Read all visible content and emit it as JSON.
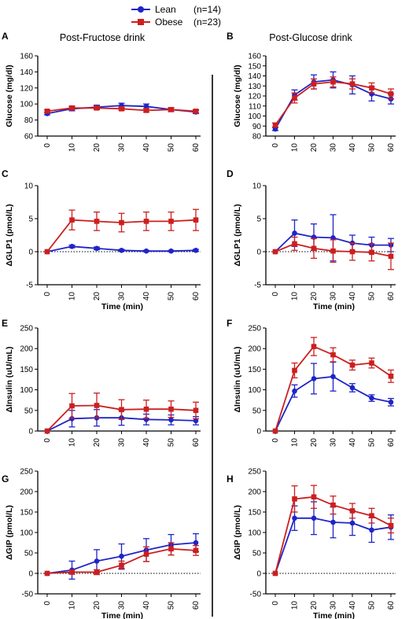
{
  "legend": {
    "items": [
      {
        "label": "Lean",
        "count": "(n=14)",
        "color": "#1f24c7",
        "marker": "circle"
      },
      {
        "label": "Obese",
        "count": "(n=23)",
        "color": "#cc1f1f",
        "marker": "square"
      }
    ]
  },
  "column_titles": [
    "Post-Fructose drink",
    "Post-Glucose drink"
  ],
  "chart_data": [
    {
      "id": "A",
      "panel_label": "A",
      "type": "line",
      "xlabel": "",
      "ylabel": "Glucose (mg/dl)",
      "xlim": [
        0,
        60
      ],
      "x_ticks": [
        0,
        10,
        20,
        30,
        40,
        50,
        60
      ],
      "ylim": [
        60,
        160
      ],
      "y_ticks": [
        60,
        80,
        100,
        120,
        140,
        160
      ],
      "zero_line": false,
      "x": [
        0,
        10,
        20,
        30,
        40,
        50,
        60
      ],
      "series": [
        {
          "name": "Lean",
          "values": [
            88,
            94,
            96,
            98,
            97,
            93,
            90
          ],
          "errors": [
            1.5,
            2.5,
            2.5,
            3,
            3,
            2.5,
            2
          ]
        },
        {
          "name": "Obese",
          "values": [
            91,
            95,
            95,
            94,
            92,
            93,
            91
          ],
          "errors": [
            1.5,
            2.5,
            2,
            2,
            2,
            2,
            2
          ]
        }
      ]
    },
    {
      "id": "B",
      "panel_label": "B",
      "type": "line",
      "xlabel": "",
      "ylabel": "Glucose (mg/dl)",
      "xlim": [
        0,
        60
      ],
      "x_ticks": [
        0,
        10,
        20,
        30,
        40,
        50,
        60
      ],
      "ylim": [
        80,
        160
      ],
      "y_ticks": [
        80,
        90,
        100,
        110,
        120,
        130,
        140,
        150,
        160
      ],
      "zero_line": false,
      "x": [
        0,
        10,
        20,
        30,
        40,
        50,
        60
      ],
      "series": [
        {
          "name": "Lean",
          "values": [
            87,
            121,
            134,
            136,
            131,
            122,
            117
          ],
          "errors": [
            1.5,
            5,
            7,
            8,
            9,
            7,
            5
          ]
        },
        {
          "name": "Obese",
          "values": [
            91,
            118,
            132,
            134,
            132,
            128,
            122
          ],
          "errors": [
            2,
            5,
            5,
            5,
            5,
            5,
            5
          ]
        }
      ]
    },
    {
      "id": "C",
      "panel_label": "C",
      "type": "line",
      "xlabel": "Time (min)",
      "ylabel": "ΔGLP1 (pmol/L)",
      "xlim": [
        0,
        60
      ],
      "x_ticks": [
        0,
        10,
        20,
        30,
        40,
        50,
        60
      ],
      "ylim": [
        -5,
        10
      ],
      "y_ticks": [
        -5,
        0,
        5,
        10
      ],
      "zero_line": true,
      "x": [
        0,
        10,
        20,
        30,
        40,
        50,
        60
      ],
      "series": [
        {
          "name": "Lean",
          "values": [
            0,
            0.8,
            0.5,
            0.2,
            0.1,
            0.1,
            0.2
          ],
          "errors": [
            0,
            0.2,
            0.2,
            0.15,
            0.1,
            0.1,
            0.15
          ]
        },
        {
          "name": "Obese",
          "values": [
            0,
            4.8,
            4.6,
            4.4,
            4.6,
            4.6,
            4.8
          ],
          "errors": [
            0,
            1.5,
            1.4,
            1.4,
            1.4,
            1.4,
            1.6
          ]
        }
      ]
    },
    {
      "id": "D",
      "panel_label": "D",
      "type": "line",
      "xlabel": "Time (min)",
      "ylabel": "ΔGLP1 (pmol/L)",
      "xlim": [
        0,
        60
      ],
      "x_ticks": [
        0,
        10,
        20,
        30,
        40,
        50,
        60
      ],
      "ylim": [
        -5,
        10
      ],
      "y_ticks": [
        -5,
        0,
        5,
        10
      ],
      "zero_line": true,
      "x": [
        0,
        10,
        20,
        30,
        40,
        50,
        60
      ],
      "series": [
        {
          "name": "Lean",
          "values": [
            0,
            2.8,
            2.2,
            2.1,
            1.3,
            1.0,
            1.0
          ],
          "errors": [
            0,
            2.0,
            2.0,
            3.5,
            1.2,
            1.2,
            1.0
          ]
        },
        {
          "name": "Obese",
          "values": [
            0,
            1.2,
            0.5,
            0.1,
            0.0,
            -0.1,
            -0.7
          ],
          "errors": [
            0,
            1.0,
            1.5,
            1.7,
            1.3,
            1.3,
            2.0
          ]
        }
      ]
    },
    {
      "id": "E",
      "panel_label": "E",
      "type": "line",
      "xlabel": "",
      "ylabel": "ΔInsulin (uU/mL)",
      "xlim": [
        0,
        60
      ],
      "x_ticks": [
        0,
        10,
        20,
        30,
        40,
        50,
        60
      ],
      "ylim": [
        0,
        250
      ],
      "y_ticks": [
        0,
        50,
        100,
        150,
        200,
        250
      ],
      "zero_line": false,
      "x": [
        0,
        10,
        20,
        30,
        40,
        50,
        60
      ],
      "series": [
        {
          "name": "Lean",
          "values": [
            0,
            30,
            32,
            32,
            28,
            27,
            25
          ],
          "errors": [
            0,
            20,
            20,
            18,
            13,
            12,
            10
          ]
        },
        {
          "name": "Obese",
          "values": [
            0,
            61,
            62,
            52,
            53,
            53,
            50
          ],
          "errors": [
            0,
            30,
            30,
            24,
            22,
            20,
            20
          ]
        }
      ]
    },
    {
      "id": "F",
      "panel_label": "F",
      "type": "line",
      "xlabel": "",
      "ylabel": "ΔInsulin (uU/mL)",
      "xlim": [
        0,
        60
      ],
      "x_ticks": [
        0,
        10,
        20,
        30,
        40,
        50,
        60
      ],
      "ylim": [
        0,
        250
      ],
      "y_ticks": [
        0,
        50,
        100,
        150,
        200,
        250
      ],
      "zero_line": false,
      "x": [
        0,
        10,
        20,
        30,
        40,
        50,
        60
      ],
      "series": [
        {
          "name": "Lean",
          "values": [
            0,
            97,
            127,
            132,
            105,
            80,
            70
          ],
          "errors": [
            0,
            15,
            37,
            35,
            10,
            8,
            9
          ]
        },
        {
          "name": "Obese",
          "values": [
            0,
            147,
            205,
            185,
            160,
            165,
            133
          ],
          "errors": [
            0,
            18,
            22,
            17,
            12,
            12,
            15
          ]
        }
      ]
    },
    {
      "id": "G",
      "panel_label": "G",
      "type": "line",
      "xlabel": "Time (min)",
      "ylabel": "ΔGIP (pmol/L)",
      "xlim": [
        0,
        60
      ],
      "x_ticks": [
        0,
        10,
        20,
        30,
        40,
        50,
        60
      ],
      "ylim": [
        -50,
        250
      ],
      "y_ticks": [
        -50,
        0,
        50,
        100,
        150,
        200,
        250
      ],
      "zero_line": true,
      "x": [
        0,
        10,
        20,
        30,
        40,
        50,
        60
      ],
      "series": [
        {
          "name": "Lean",
          "values": [
            0,
            8,
            30,
            42,
            57,
            70,
            75
          ],
          "errors": [
            0,
            22,
            28,
            30,
            28,
            25,
            22
          ]
        },
        {
          "name": "Obese",
          "values": [
            0,
            3,
            3,
            20,
            47,
            60,
            56
          ],
          "errors": [
            0,
            5,
            6,
            10,
            18,
            15,
            12
          ]
        }
      ]
    },
    {
      "id": "H",
      "panel_label": "H",
      "type": "line",
      "xlabel": "Time (min)",
      "ylabel": "ΔGIP (pmol/L)",
      "xlim": [
        0,
        60
      ],
      "x_ticks": [
        0,
        10,
        20,
        30,
        40,
        50,
        60
      ],
      "ylim": [
        -50,
        250
      ],
      "y_ticks": [
        -50,
        0,
        50,
        100,
        150,
        200,
        250
      ],
      "zero_line": true,
      "x": [
        0,
        10,
        20,
        30,
        40,
        50,
        60
      ],
      "series": [
        {
          "name": "Lean",
          "values": [
            0,
            135,
            135,
            125,
            123,
            106,
            113
          ],
          "errors": [
            0,
            30,
            40,
            38,
            30,
            30,
            30
          ]
        },
        {
          "name": "Obese",
          "values": [
            0,
            182,
            187,
            167,
            153,
            141,
            117
          ],
          "errors": [
            0,
            32,
            28,
            22,
            18,
            18,
            18
          ]
        }
      ]
    }
  ]
}
